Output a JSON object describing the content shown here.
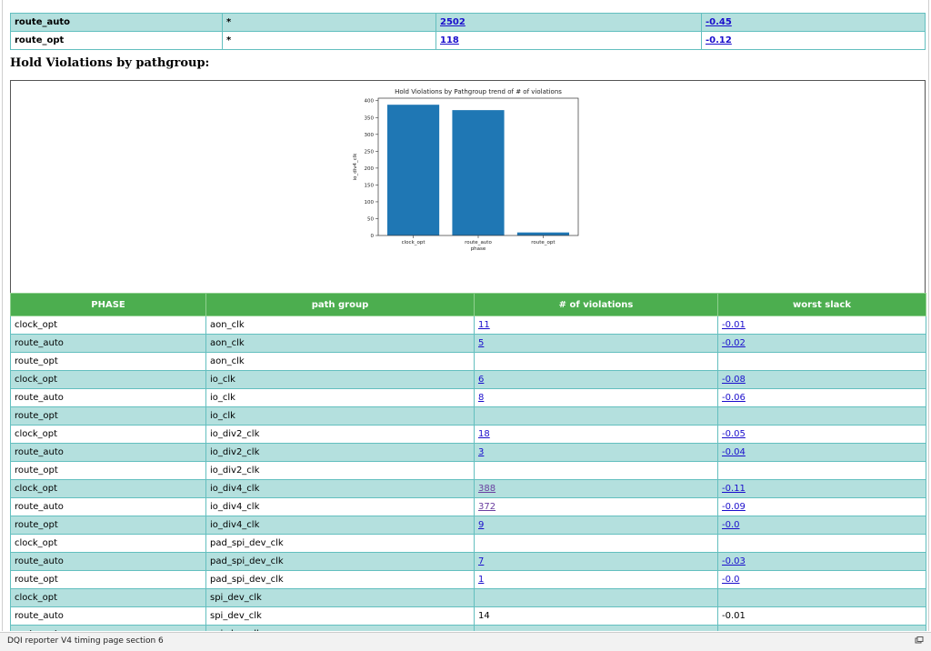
{
  "top_table": {
    "rows": [
      [
        "route_auto",
        "*",
        "2502",
        "-0.45"
      ],
      [
        "route_opt",
        "*",
        "118",
        "-0.12"
      ]
    ]
  },
  "heading": "Hold Violations by pathgroup:",
  "chart_data": {
    "type": "bar",
    "title": "Hold Violations by Pathgroup trend of # of violations",
    "x_label": "phase",
    "y_label": "io_div4_clk",
    "categories": [
      "clock_opt",
      "route_auto",
      "route_opt"
    ],
    "values": [
      388,
      372,
      9
    ],
    "color": "#1f77b4",
    "ylim": [
      0,
      407.4
    ],
    "yticks": [
      0,
      50,
      100,
      150,
      200,
      250,
      300,
      350,
      400
    ]
  },
  "table": {
    "columns": [
      "PHASE",
      "path group",
      "# of violations",
      "worst slack"
    ],
    "rows": [
      [
        "clock_opt",
        "aon_clk",
        "11",
        "-0.01"
      ],
      [
        "route_auto",
        "aon_clk",
        "5",
        "-0.02"
      ],
      [
        "route_opt",
        "aon_clk",
        null,
        null
      ],
      [
        "clock_opt",
        "io_clk",
        "6",
        "-0.08"
      ],
      [
        "route_auto",
        "io_clk",
        "8",
        "-0.06"
      ],
      [
        "route_opt",
        "io_clk",
        null,
        null
      ],
      [
        "clock_opt",
        "io_div2_clk",
        "18",
        "-0.05"
      ],
      [
        "route_auto",
        "io_div2_clk",
        "3",
        "-0.04"
      ],
      [
        "route_opt",
        "io_div2_clk",
        null,
        null
      ],
      [
        "clock_opt",
        "io_div4_clk",
        "388",
        "-0.11"
      ],
      [
        "route_auto",
        "io_div4_clk",
        "372",
        "-0.09"
      ],
      [
        "route_opt",
        "io_div4_clk",
        "9",
        "-0.0"
      ],
      [
        "clock_opt",
        "pad_spi_dev_clk",
        null,
        null
      ],
      [
        "route_auto",
        "pad_spi_dev_clk",
        "7",
        "-0.03"
      ],
      [
        "route_opt",
        "pad_spi_dev_clk",
        "1",
        "-0.0"
      ],
      [
        "clock_opt",
        "spi_dev_clk",
        null,
        null
      ],
      [
        "route_auto",
        "spi_dev_clk",
        "14",
        "-0.01"
      ],
      [
        "route_opt",
        "spi_dev_clk",
        null,
        null
      ]
    ]
  },
  "status_bar": "DQI reporter V4 timing page section 6"
}
